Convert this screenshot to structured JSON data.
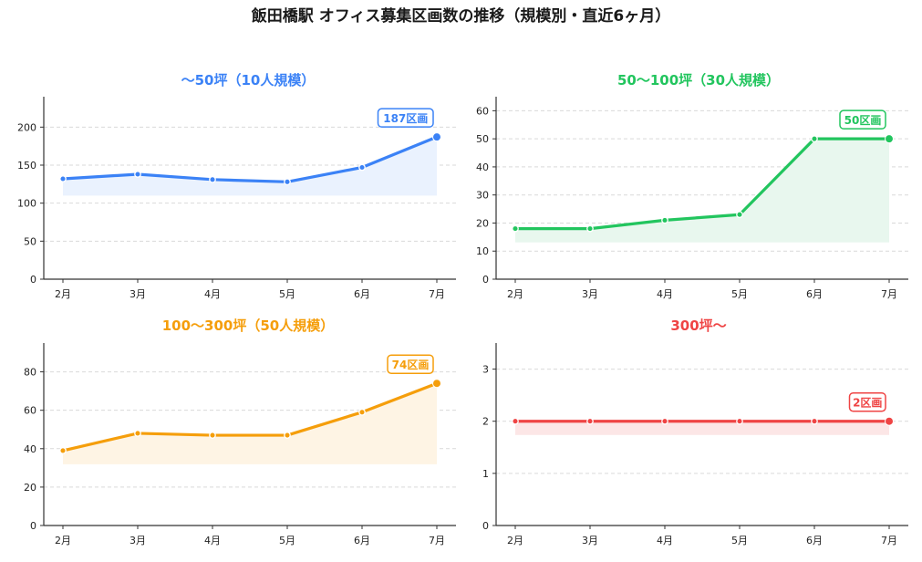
{
  "title": "飯田橋駅 オフィス募集区画数の推移（規模別・直近6ヶ月）",
  "chart_data": [
    {
      "type": "area",
      "title": "〜50坪（10人規模）",
      "color": "#3b82f6",
      "fill": "#eaf2fe",
      "categories": [
        "2月",
        "3月",
        "4月",
        "5月",
        "6月",
        "7月"
      ],
      "values": [
        132,
        138,
        131,
        128,
        147,
        187
      ],
      "ylim": [
        0,
        240
      ],
      "yticks": [
        0,
        50,
        100,
        150,
        200
      ],
      "badge": "187区画",
      "grid": true
    },
    {
      "type": "area",
      "title": "50〜100坪（30人規模）",
      "color": "#22c55e",
      "fill": "#e8f7ee",
      "categories": [
        "2月",
        "3月",
        "4月",
        "5月",
        "6月",
        "7月"
      ],
      "values": [
        18,
        18,
        21,
        23,
        50,
        50
      ],
      "ylim": [
        0,
        65
      ],
      "yticks": [
        0,
        10,
        20,
        30,
        40,
        50,
        60
      ],
      "badge": "50区画",
      "grid": true
    },
    {
      "type": "area",
      "title": "100〜300坪（50人規模）",
      "color": "#f59e0b",
      "fill": "#fef4e4",
      "categories": [
        "2月",
        "3月",
        "4月",
        "5月",
        "6月",
        "7月"
      ],
      "values": [
        39,
        48,
        47,
        47,
        59,
        74
      ],
      "ylim": [
        0,
        95
      ],
      "yticks": [
        0,
        20,
        40,
        60,
        80
      ],
      "badge": "74区画",
      "grid": true
    },
    {
      "type": "area",
      "title": "300坪〜",
      "color": "#ef4444",
      "fill": "#fce6e6",
      "categories": [
        "2月",
        "3月",
        "4月",
        "5月",
        "6月",
        "7月"
      ],
      "values": [
        2,
        2,
        2,
        2,
        2,
        2
      ],
      "ylim": [
        0,
        3.5
      ],
      "yticks": [
        0,
        1,
        2,
        3
      ],
      "badge": "2区画",
      "grid": true
    }
  ]
}
